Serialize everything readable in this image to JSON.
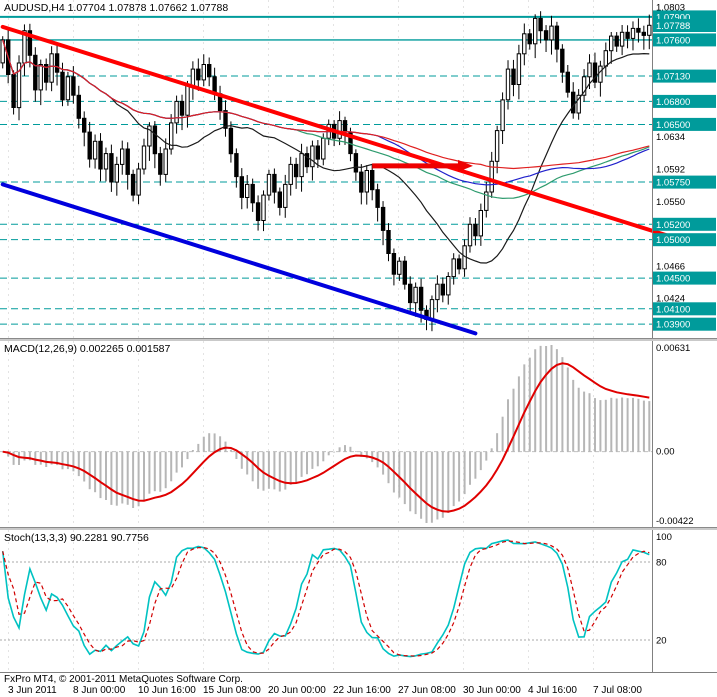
{
  "titles": {
    "price": "AUDUSD,H4 1.07704 1.07878 1.07662 1.07788",
    "macd": "MACD(12,26,9) 0.002265 0.001587",
    "stoch": "Stoch(13,3,3) 90.2281 90.7756"
  },
  "footer": {
    "copyright": "FxPro MT4, © 2001-2011 MetaQuotes Software Corp."
  },
  "chart_data": [
    {
      "type": "candlestick",
      "symbol": "AUDUSD",
      "timeframe": "H4",
      "ohlc_current": [
        1.07704,
        1.07878,
        1.07662,
        1.07788
      ],
      "x_labels": [
        "3 Jun 2011",
        "8 Jun 00:00",
        "10 Jun 16:00",
        "15 Jun 08:00",
        "20 Jun 00:00",
        "22 Jun 16:00",
        "27 Jun 08:00",
        "30 Jun 00:00",
        "4 Jul 16:00",
        "7 Jul 08:00"
      ],
      "ylim": [
        1.0372,
        1.0812
      ],
      "level_color": "#009b9b",
      "levels": [
        {
          "price": 1.079,
          "label": "1.07900",
          "style": "solid",
          "width": 2
        },
        {
          "price": 1.076,
          "label": "1.07600",
          "style": "solid",
          "width": 1.4
        },
        {
          "price": 1.0713,
          "label": "1.07130",
          "style": "dash",
          "width": 1
        },
        {
          "price": 1.068,
          "label": "1.06800",
          "style": "dash",
          "width": 1
        },
        {
          "price": 1.065,
          "label": "1.06500",
          "style": "dash",
          "width": 1
        },
        {
          "price": 1.0575,
          "label": "1.05750",
          "style": "dash",
          "width": 1
        },
        {
          "price": 1.052,
          "label": "1.05200",
          "style": "dash",
          "width": 1
        },
        {
          "price": 1.05,
          "label": "1.05000",
          "style": "dash",
          "width": 1
        },
        {
          "price": 1.045,
          "label": "1.04500",
          "style": "dash",
          "width": 1
        },
        {
          "price": 1.041,
          "label": "1.04100",
          "style": "dash",
          "width": 1
        },
        {
          "price": 1.039,
          "label": "1.03900",
          "style": "dash",
          "width": 1
        }
      ],
      "plain_ticks": [
        {
          "price": 1.0803,
          "label": "1.0803"
        },
        {
          "price": 1.0634,
          "label": "1.0634"
        },
        {
          "price": 1.0592,
          "label": "1.0592"
        },
        {
          "price": 1.055,
          "label": "1.0550"
        },
        {
          "price": 1.0466,
          "label": "1.0466"
        },
        {
          "price": 1.0424,
          "label": "1.0424"
        }
      ],
      "current": {
        "price": 1.07788,
        "label": "1.07788"
      },
      "first_open": 1.073,
      "wick_base": 0.0007,
      "wick_var": 0.0013,
      "closes": [
        1.076,
        1.0715,
        1.0672,
        1.073,
        1.0772,
        1.074,
        1.0695,
        1.0728,
        1.0705,
        1.0742,
        1.0718,
        1.0682,
        1.0712,
        1.0688,
        1.0658,
        1.064,
        1.0605,
        1.0628,
        1.0592,
        1.0612,
        1.0575,
        1.0598,
        1.0618,
        1.0585,
        1.0558,
        1.0592,
        1.0622,
        1.0648,
        1.0612,
        1.0585,
        1.0618,
        1.0652,
        1.068,
        1.0662,
        1.07,
        1.0722,
        1.0708,
        1.0728,
        1.0712,
        1.069,
        1.0668,
        1.0645,
        1.0612,
        1.0582,
        1.0555,
        1.0572,
        1.0548,
        1.0525,
        1.0558,
        1.0585,
        1.0562,
        1.0542,
        1.0572,
        1.0598,
        1.0582,
        1.0612,
        1.0595,
        1.0622,
        1.0605,
        1.0632,
        1.065,
        1.0632,
        1.0655,
        1.064,
        1.0612,
        1.0588,
        1.0562,
        1.059,
        1.0565,
        1.0542,
        1.0512,
        1.0482,
        1.0455,
        1.0472,
        1.0442,
        1.0418,
        1.0438,
        1.0408,
        1.0396,
        1.0422,
        1.0442,
        1.0428,
        1.0452,
        1.0475,
        1.0462,
        1.0492,
        1.052,
        1.0505,
        1.0538,
        1.0562,
        1.0602,
        1.0642,
        1.0682,
        1.0722,
        1.0702,
        1.0742,
        1.0768,
        1.0755,
        1.0788,
        1.0772,
        1.076,
        1.0778,
        1.0748,
        1.0718,
        1.0692,
        1.0665,
        1.0688,
        1.0712,
        1.073,
        1.0705,
        1.0726,
        1.0746,
        1.0765,
        1.0752,
        1.077,
        1.0762,
        1.0775,
        1.077,
        1.0766,
        1.0779
      ],
      "moving_averages": [
        {
          "name": "ma-black",
          "color": "#1a1a1a",
          "period": 21
        },
        {
          "name": "ma-green",
          "color": "#2e9b6e",
          "period": 55
        },
        {
          "name": "ma-blue",
          "color": "#2020cc",
          "period": 70
        },
        {
          "name": "ma-red",
          "color": "#e02020",
          "period": 89
        }
      ],
      "trendlines": [
        {
          "name": "descending-resistance-trendline",
          "color": "#ff0000",
          "width": 4,
          "from_index": 0,
          "from_price": 1.0777,
          "to_index": 127,
          "to_price": 1.0495
        },
        {
          "name": "descending-support-trendline",
          "color": "#0000dd",
          "width": 4,
          "from_index": 0,
          "from_price": 1.0572,
          "to_index": 87,
          "to_price": 1.0378
        }
      ],
      "arrow": {
        "name": "breakout-arrow",
        "color": "#ee0000",
        "price": 1.0596,
        "from_index": 68,
        "to_index": 86
      }
    },
    {
      "type": "histogram+line",
      "name": "MACD",
      "params": [
        12,
        26,
        9
      ],
      "main_value": 0.002265,
      "signal_value": 0.001587,
      "y_range": [
        -0.00422,
        0.00631
      ],
      "y_tick_labels": [
        "0.00631",
        "0.00",
        "-0.00422"
      ],
      "histogram_color": "#b6b6b6",
      "signal_color": "#e00000"
    },
    {
      "type": "line",
      "name": "Stochastic",
      "params": [
        13,
        3,
        3
      ],
      "main_value": 90.2281,
      "signal_value": 90.7756,
      "levels": [
        80,
        20
      ],
      "y_ticks": [
        {
          "label": "100",
          "value": 100
        },
        {
          "label": "80",
          "value": 80
        },
        {
          "label": "20",
          "value": 20
        }
      ],
      "main_color": "#00c2c2",
      "signal_color": "#d00000"
    }
  ]
}
